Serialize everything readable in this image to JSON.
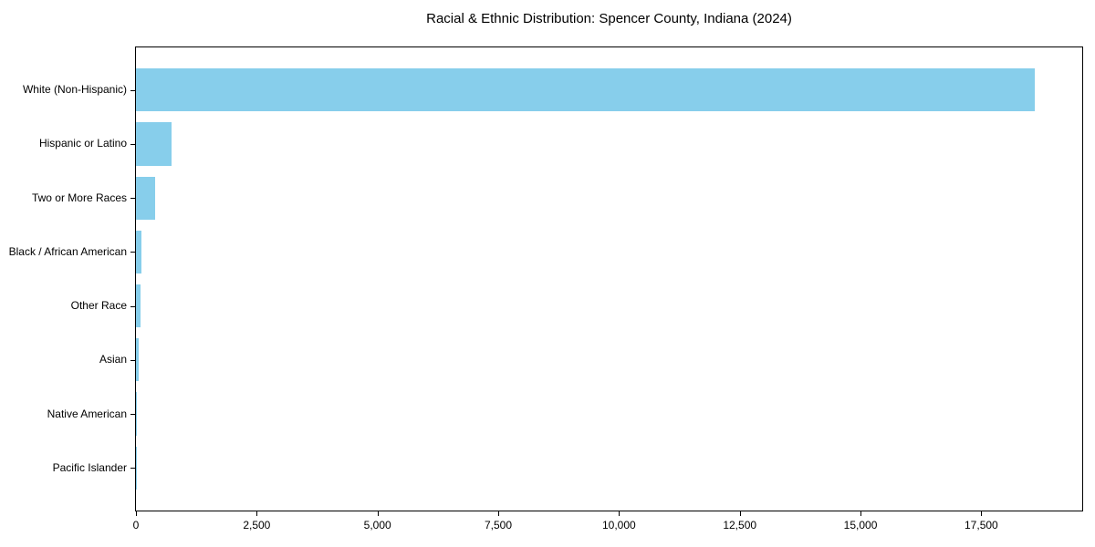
{
  "chart_data": {
    "type": "bar",
    "orientation": "horizontal",
    "title": "Racial & Ethnic Distribution: Spencer County, Indiana (2024)",
    "categories": [
      "White (Non-Hispanic)",
      "Hispanic or Latino",
      "Two or More Races",
      "Black / African American",
      "Other Race",
      "Asian",
      "Native American",
      "Pacific Islander"
    ],
    "values": [
      18600,
      740,
      400,
      120,
      95,
      50,
      20,
      5
    ],
    "xlabel": "",
    "ylabel": "",
    "xlim": [
      0,
      19590
    ],
    "x_ticks": [
      0,
      2500,
      5000,
      7500,
      10000,
      12500,
      15000,
      17500
    ],
    "x_tick_labels": [
      "0",
      "2,500",
      "5,000",
      "7,500",
      "10,000",
      "12,500",
      "15,000",
      "17,500"
    ],
    "grid": false,
    "legend": null,
    "bar_color": "#87CEEB",
    "axis_color": "#000000",
    "background_color": "#ffffff"
  }
}
